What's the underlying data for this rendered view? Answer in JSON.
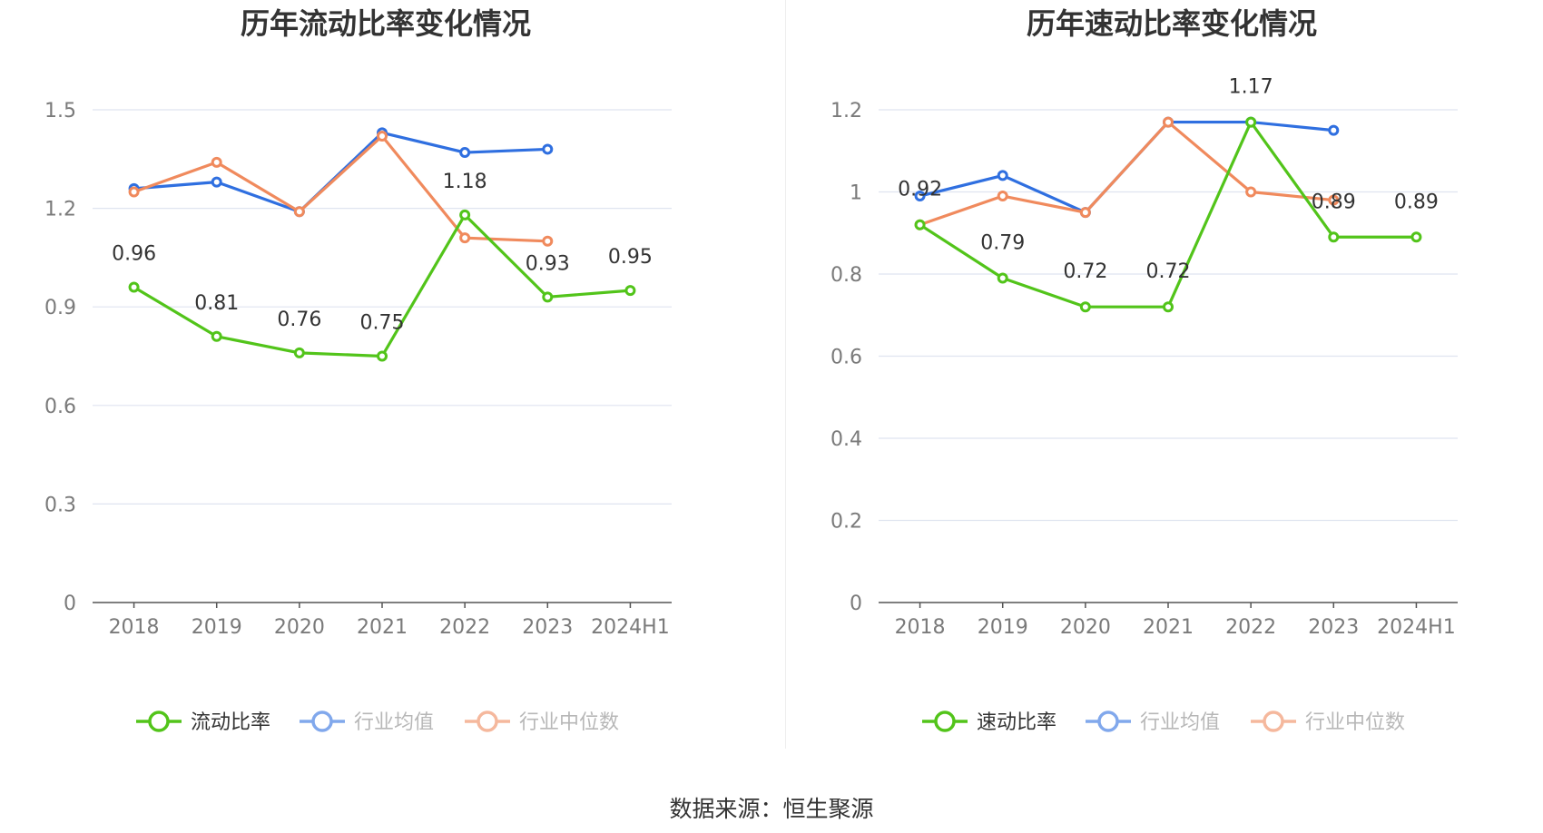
{
  "colors": {
    "current": "#52c41a",
    "avg": "#2f6fe0",
    "median": "#f08a5d",
    "grid": "#dfe4f0",
    "axis": "#555555"
  },
  "chart_data": [
    {
      "type": "line",
      "title": "历年流动比率变化情况",
      "categories": [
        "2018",
        "2019",
        "2020",
        "2021",
        "2022",
        "2023",
        "2024H1"
      ],
      "yticks": [
        "0",
        "0.3",
        "0.6",
        "0.9",
        "1.2",
        "1.5"
      ],
      "ylim": [
        0,
        1.5
      ],
      "grid": true,
      "legend_position": "bottom",
      "series": [
        {
          "name": "流动比率",
          "key": "current",
          "values": [
            0.96,
            0.81,
            0.76,
            0.75,
            1.18,
            0.93,
            0.95
          ],
          "labels": [
            "0.96",
            "0.81",
            "0.76",
            "0.75",
            "1.18",
            "0.93",
            "0.95"
          ]
        },
        {
          "name": "行业均值",
          "key": "avg",
          "values": [
            1.26,
            1.28,
            1.19,
            1.43,
            1.37,
            1.38,
            null
          ]
        },
        {
          "name": "行业中位数",
          "key": "median",
          "values": [
            1.25,
            1.34,
            1.19,
            1.42,
            1.11,
            1.1,
            null
          ]
        }
      ]
    },
    {
      "type": "line",
      "title": "历年速动比率变化情况",
      "categories": [
        "2018",
        "2019",
        "2020",
        "2021",
        "2022",
        "2023",
        "2024H1"
      ],
      "yticks": [
        "0",
        "0.2",
        "0.4",
        "0.6",
        "0.8",
        "1",
        "1.2"
      ],
      "ylim": [
        0,
        1.2
      ],
      "grid": true,
      "legend_position": "bottom",
      "series": [
        {
          "name": "速动比率",
          "key": "current",
          "values": [
            0.92,
            0.79,
            0.72,
            0.72,
            1.17,
            0.89,
            0.89
          ],
          "labels": [
            "0.92",
            "0.79",
            "0.72",
            "0.72",
            "1.17",
            "0.89",
            "0.89"
          ]
        },
        {
          "name": "行业均值",
          "key": "avg",
          "values": [
            0.99,
            1.04,
            0.95,
            1.17,
            1.17,
            1.15,
            null
          ]
        },
        {
          "name": "行业中位数",
          "key": "median",
          "values": [
            0.92,
            0.99,
            0.95,
            1.17,
            1.0,
            0.98,
            null
          ]
        }
      ]
    }
  ],
  "source": "数据来源：恒生聚源"
}
